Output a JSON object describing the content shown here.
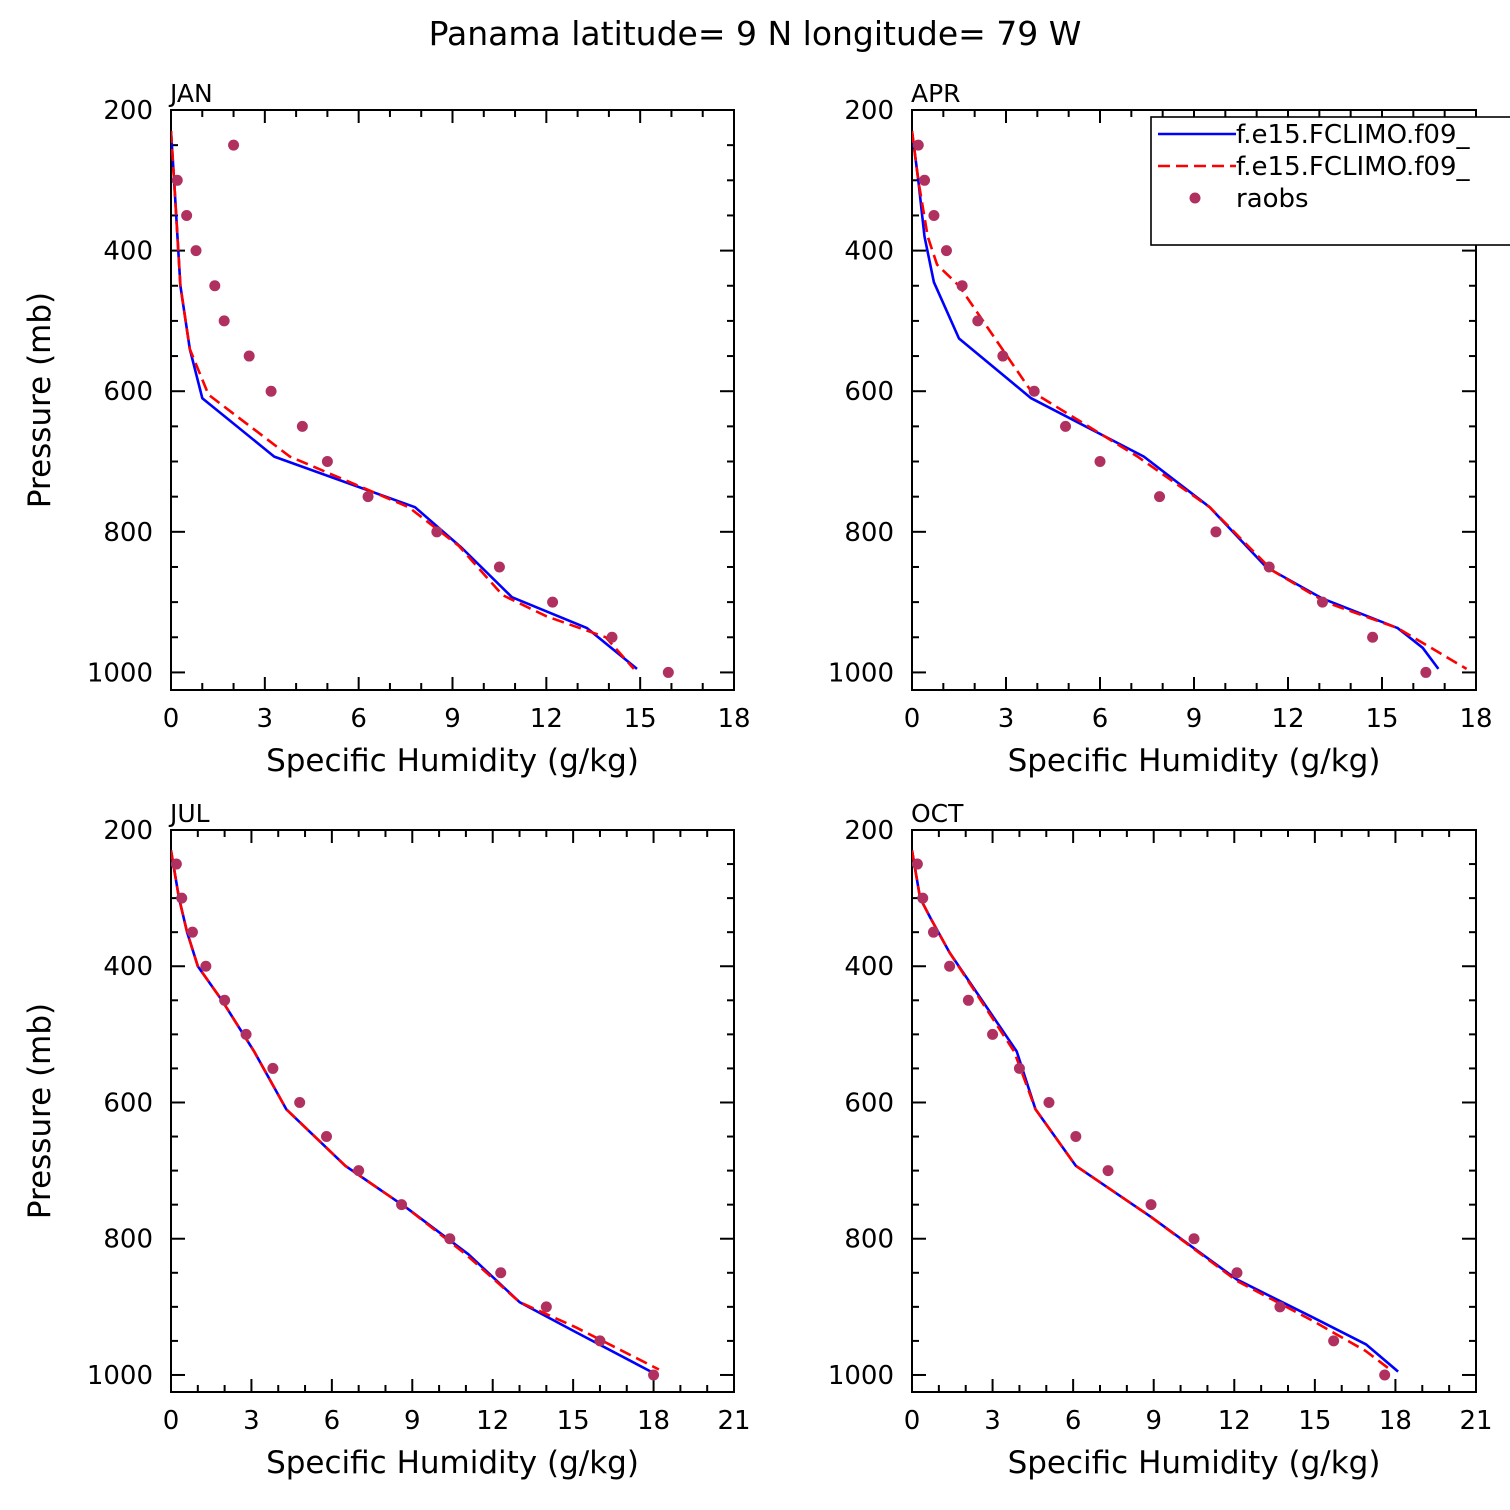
{
  "figure": {
    "title": "Panama  latitude= 9 N longitude= 79 W"
  },
  "colors": {
    "model1": "#0000ff",
    "model2": "#ff0000",
    "raobs": "#b03060",
    "axes": "#000000"
  },
  "chart_data": [
    {
      "type": "line",
      "panel_label": "JAN",
      "xlabel": "Specific Humidity (g/kg)",
      "ylabel": "Pressure (mb)",
      "xlim": [
        0,
        18
      ],
      "ylim": [
        1025,
        200
      ],
      "xticks": [
        0,
        3,
        6,
        9,
        12,
        15,
        18
      ],
      "yticks": [
        200,
        400,
        600,
        800,
        1000
      ],
      "y_reversed": true,
      "legend": null,
      "series": [
        {
          "name": "f.e15.FCLIMO.f09_",
          "style": "solid",
          "x": [
            0.0,
            0.1,
            0.3,
            0.6,
            1.0,
            3.3,
            7.8,
            9.3,
            10.9,
            13.3,
            14.9
          ],
          "y": [
            230,
            300,
            450,
            540,
            610,
            693,
            765,
            823,
            893,
            937,
            995
          ]
        },
        {
          "name": "f.e15.FCLIMO.f09_",
          "style": "dashed",
          "x": [
            0.0,
            0.1,
            0.3,
            0.6,
            1.2,
            3.8,
            7.6,
            9.2,
            10.6,
            12.0,
            13.9,
            14.8
          ],
          "y": [
            230,
            300,
            450,
            540,
            605,
            693,
            765,
            820,
            890,
            920,
            950,
            995
          ]
        },
        {
          "name": "raobs",
          "style": "markers",
          "x": [
            2.0,
            0.2,
            0.5,
            0.8,
            1.4,
            1.7,
            2.5,
            3.2,
            4.2,
            5.0,
            6.3,
            8.5,
            10.5,
            12.2,
            14.1,
            15.9
          ],
          "y": [
            250,
            300,
            350,
            400,
            450,
            500,
            550,
            600,
            650,
            700,
            750,
            800,
            850,
            900,
            950,
            1000
          ]
        }
      ]
    },
    {
      "type": "line",
      "panel_label": "APR",
      "xlabel": "Specific Humidity (g/kg)",
      "ylabel": "",
      "xlim": [
        0,
        18
      ],
      "ylim": [
        1025,
        200
      ],
      "xticks": [
        0,
        3,
        6,
        9,
        12,
        15,
        18
      ],
      "yticks": [
        200,
        400,
        600,
        800,
        1000
      ],
      "y_reversed": true,
      "legend": [
        "f.e15.FCLIMO.f09_",
        "f.e15.FCLIMO.f09_",
        "raobs"
      ],
      "series": [
        {
          "name": "f.e15.FCLIMO.f09_",
          "style": "solid",
          "x": [
            0.0,
            0.2,
            0.4,
            0.7,
            1.5,
            3.8,
            7.4,
            9.5,
            11.3,
            13.1,
            15.5,
            16.3,
            16.8
          ],
          "y": [
            230,
            300,
            380,
            445,
            525,
            610,
            693,
            765,
            850,
            895,
            937,
            965,
            995
          ]
        },
        {
          "name": "f.e15.FCLIMO.f09_",
          "style": "dashed",
          "x": [
            0.0,
            0.2,
            0.5,
            0.8,
            1.5,
            3.8,
            7.2,
            9.5,
            11.5,
            13.2,
            15.5,
            17.7
          ],
          "y": [
            230,
            300,
            380,
            420,
            450,
            600,
            693,
            765,
            855,
            900,
            937,
            995
          ]
        },
        {
          "name": "raobs",
          "style": "markers",
          "x": [
            0.2,
            0.4,
            0.7,
            1.1,
            1.6,
            2.1,
            2.9,
            3.9,
            4.9,
            6.0,
            7.9,
            9.7,
            11.4,
            13.1,
            14.7,
            16.4
          ],
          "y": [
            250,
            300,
            350,
            400,
            450,
            500,
            550,
            600,
            650,
            700,
            750,
            800,
            850,
            900,
            950,
            1000
          ]
        }
      ]
    },
    {
      "type": "line",
      "panel_label": "JUL",
      "xlabel": "Specific Humidity (g/kg)",
      "ylabel": "Pressure (mb)",
      "xlim": [
        0,
        21
      ],
      "ylim": [
        1025,
        200
      ],
      "xticks": [
        0,
        3,
        6,
        9,
        12,
        15,
        18,
        21
      ],
      "yticks": [
        200,
        400,
        600,
        800,
        1000
      ],
      "y_reversed": true,
      "legend": null,
      "series": [
        {
          "name": "f.e15.FCLIMO.f09_",
          "style": "solid",
          "x": [
            0.0,
            0.3,
            0.6,
            1.0,
            1.9,
            3.1,
            4.3,
            6.5,
            8.8,
            11.1,
            13.0,
            15.1,
            17.9
          ],
          "y": [
            230,
            300,
            350,
            400,
            450,
            525,
            610,
            693,
            755,
            823,
            893,
            937,
            995
          ]
        },
        {
          "name": "f.e15.FCLIMO.f09_",
          "style": "dashed",
          "x": [
            0.0,
            0.3,
            0.6,
            1.0,
            1.9,
            3.1,
            4.3,
            6.5,
            8.8,
            11.0,
            13.0,
            15.1,
            18.2
          ],
          "y": [
            230,
            300,
            350,
            400,
            450,
            525,
            610,
            693,
            755,
            823,
            893,
            930,
            992
          ]
        },
        {
          "name": "raobs",
          "style": "markers",
          "x": [
            0.2,
            0.4,
            0.8,
            1.3,
            2.0,
            2.8,
            3.8,
            4.8,
            5.8,
            7.0,
            8.6,
            10.4,
            12.3,
            14.0,
            16.0,
            18.0
          ],
          "y": [
            250,
            300,
            350,
            400,
            450,
            500,
            550,
            600,
            650,
            700,
            750,
            800,
            850,
            900,
            950,
            1000
          ]
        }
      ]
    },
    {
      "type": "line",
      "panel_label": "OCT",
      "xlabel": "Specific Humidity (g/kg)",
      "ylabel": "",
      "xlim": [
        0,
        21
      ],
      "ylim": [
        1025,
        200
      ],
      "xticks": [
        0,
        3,
        6,
        9,
        12,
        15,
        18,
        21
      ],
      "yticks": [
        200,
        400,
        600,
        800,
        1000
      ],
      "y_reversed": true,
      "legend": null,
      "series": [
        {
          "name": "f.e15.FCLIMO.f09_",
          "style": "solid",
          "x": [
            0.0,
            0.3,
            0.7,
            1.4,
            3.9,
            4.6,
            6.1,
            8.9,
            12.1,
            14.9,
            16.9,
            18.1
          ],
          "y": [
            230,
            300,
            330,
            380,
            525,
            610,
            693,
            768,
            860,
            915,
            955,
            995
          ]
        },
        {
          "name": "f.e15.FCLIMO.f09_",
          "style": "dashed",
          "x": [
            0.0,
            0.3,
            0.7,
            1.4,
            3.8,
            4.6,
            6.1,
            8.9,
            12.1,
            14.9,
            16.9,
            17.8
          ],
          "y": [
            230,
            300,
            330,
            380,
            525,
            610,
            693,
            768,
            862,
            920,
            965,
            992
          ]
        },
        {
          "name": "raobs",
          "style": "markers",
          "x": [
            0.2,
            0.4,
            0.8,
            1.4,
            2.1,
            3.0,
            4.0,
            5.1,
            6.1,
            7.3,
            8.9,
            10.5,
            12.1,
            13.7,
            15.7,
            17.6
          ],
          "y": [
            250,
            300,
            350,
            400,
            450,
            500,
            550,
            600,
            650,
            700,
            750,
            800,
            850,
            900,
            950,
            1000
          ]
        }
      ]
    }
  ]
}
